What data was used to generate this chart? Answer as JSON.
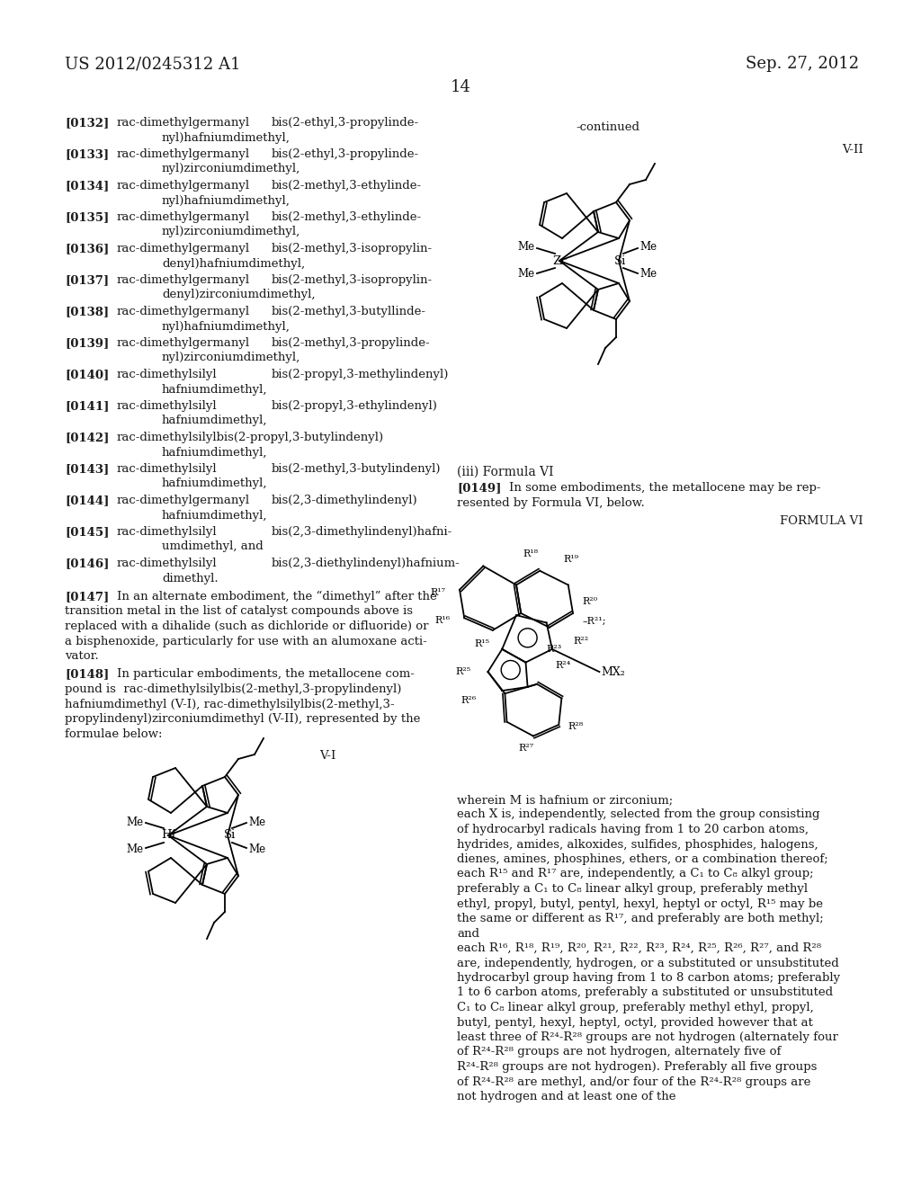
{
  "header_left": "US 2012/0245312 A1",
  "header_right": "Sep. 27, 2012",
  "page_number": "14",
  "bg": "#ffffff",
  "tc": "#1a1a1a",
  "continued_label": "-continued",
  "vII_label": "V-II",
  "vI_label": "V-I",
  "formula_vi_label": "FORMULA VI",
  "iii_heading": "(iii) Formula VI",
  "para_0149_tag": "[0149]",
  "para_0149_text": "In some embodiments, the metallocene may be rep-resented by Formula VI, below.",
  "left_paragraphs": [
    {
      "tag": "[0132]",
      "col1": "rac-dimethylgermanyl",
      "col2": "bis(2-ethyl,3-propylinde-",
      "cont": "nyl)hafniumdimethyl,"
    },
    {
      "tag": "[0133]",
      "col1": "rac-dimethylgermanyl",
      "col2": "bis(2-ethyl,3-propylinde-",
      "cont": "nyl)zirconiumdimethyl,"
    },
    {
      "tag": "[0134]",
      "col1": "rac-dimethylgermanyl",
      "col2": "bis(2-methyl,3-ethylinde-",
      "cont": "nyl)hafniumdimethyl,"
    },
    {
      "tag": "[0135]",
      "col1": "rac-dimethylgermanyl",
      "col2": "bis(2-methyl,3-ethylinde-",
      "cont": "nyl)zirconiumdimethyl,"
    },
    {
      "tag": "[0136]",
      "col1": "rac-dimethylgermanyl",
      "col2": "bis(2-methyl,3-isopropylin-",
      "cont": "denyl)hafniumdimethyl,"
    },
    {
      "tag": "[0137]",
      "col1": "rac-dimethylgermanyl",
      "col2": "bis(2-methyl,3-isopropylin-",
      "cont": "denyl)zirconiumdimethyl,"
    },
    {
      "tag": "[0138]",
      "col1": "rac-dimethylgermanyl",
      "col2": "bis(2-methyl,3-butyllinde-",
      "cont": "nyl)hafniumdimethyl,"
    },
    {
      "tag": "[0139]",
      "col1": "rac-dimethylgermanyl",
      "col2": "bis(2-methyl,3-propylinde-",
      "cont": "nyl)zirconiumdimethyl,"
    },
    {
      "tag": "[0140]",
      "col1": "rac-dimethylsilyl",
      "col2": "bis(2-propyl,3-methylindenyl)",
      "cont": "hafniumdimethyl,"
    },
    {
      "tag": "[0141]",
      "col1": "rac-dimethylsilyl",
      "col2": "bis(2-propyl,3-ethylindenyl)",
      "cont": "hafniumdimethyl,"
    },
    {
      "tag": "[0142]",
      "col1": "rac-dimethylsilylbis(2-propyl,3-butylindenyl)",
      "col2": "",
      "cont": "hafniumdimethyl,"
    },
    {
      "tag": "[0143]",
      "col1": "rac-dimethylsilyl",
      "col2": "bis(2-methyl,3-butylindenyl)",
      "cont": "hafniumdimethyl,"
    },
    {
      "tag": "[0144]",
      "col1": "rac-dimethylgermanyl",
      "col2": "bis(2,3-dimethylindenyl)",
      "cont": "hafniumdimethyl,"
    },
    {
      "tag": "[0145]",
      "col1": "rac-dimethylsilyl",
      "col2": "bis(2,3-dimethylindenyl)hafni-",
      "cont": "umdimethyl, and"
    },
    {
      "tag": "[0146]",
      "col1": "rac-dimethylsilyl",
      "col2": "bis(2,3-diethylindenyl)hafnium-",
      "cont": "dimethyl."
    }
  ],
  "para_0147_tag": "[0147]",
  "para_0147_lines": [
    "In an alternate embodiment, the “dimethyl” after the",
    "transition metal in the list of catalyst compounds above is",
    "replaced with a dihalide (such as dichloride or difluoride) or",
    "a bisphenoxide, particularly for use with an alumoxane acti-",
    "vator."
  ],
  "para_0148_tag": "[0148]",
  "para_0148_lines": [
    "In particular embodiments, the metallocene com-",
    "pound is  rac-dimethylsilylbis(2-methyl,3-propylindenyl)",
    "hafniumdimethyl (V-I), rac-dimethylsilylbis(2-methyl,3-",
    "propylindenyl)zirconiumdimethyl (V-II), represented by the",
    "formulae below:"
  ],
  "wherein_lines": [
    "wherein M is hafnium or zirconium;",
    "each X is, independently, selected from the group consisting",
    "of hydrocarbyl radicals having from 1 to 20 carbon atoms,",
    "hydrides, amides, alkoxides, sulfides, phosphides, halogens,",
    "dienes, amines, phosphines, ethers, or a combination thereof;",
    "each R¹⁵ and R¹⁷ are, independently, a C₁ to C₈ alkyl group;",
    "preferably a C₁ to C₈ linear alkyl group, preferably methyl",
    "ethyl, propyl, butyl, pentyl, hexyl, heptyl or octyl, R¹⁵ may be",
    "the same or different as R¹⁷, and preferably are both methyl;",
    "and",
    "each R¹⁶, R¹⁸, R¹⁹, R²⁰, R²¹, R²², R²³, R²⁴, R²⁵, R²⁶, R²⁷, and R²⁸",
    "are, independently, hydrogen, or a substituted or unsubstituted",
    "hydrocarbyl group having from 1 to 8 carbon atoms; preferably",
    "1 to 6 carbon atoms, preferably a substituted or unsubstituted",
    "C₁ to C₈ linear alkyl group, preferably methyl ethyl, propyl,",
    "butyl, pentyl, hexyl, heptyl, octyl, provided however that at",
    "least three of R²⁴-R²⁸ groups are not hydrogen (alternately four",
    "of R²⁴-R²⁸ groups are not hydrogen, alternately five of",
    "R²⁴-R²⁸ groups are not hydrogen). Preferably all five groups",
    "of R²⁴-R²⁸ are methyl, and/or four of the R²⁴-R²⁸ groups are",
    "not hydrogen and at least one of the"
  ]
}
